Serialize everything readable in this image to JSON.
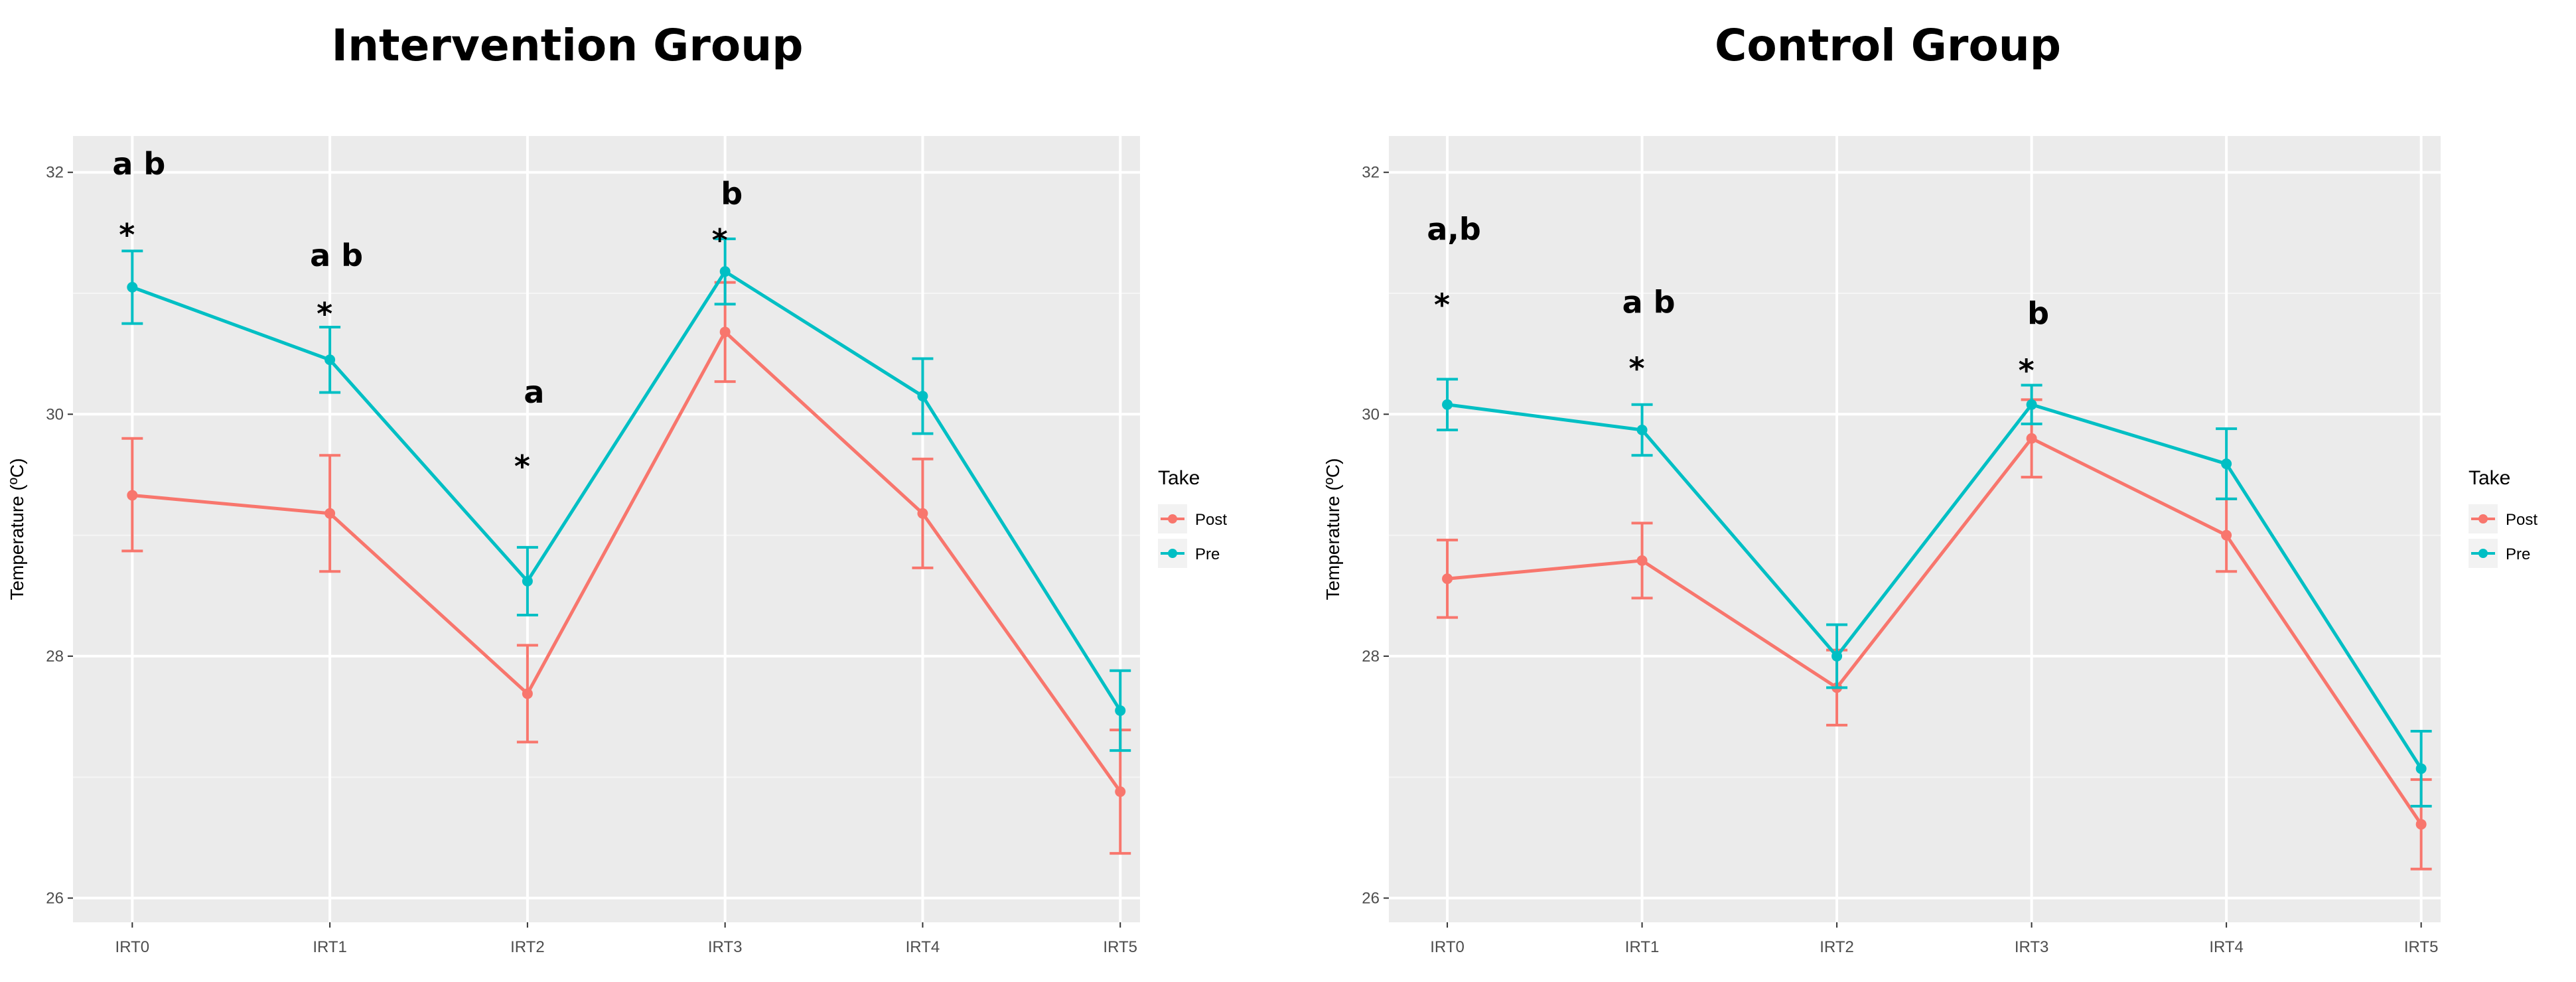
{
  "chart_data": [
    {
      "type": "line",
      "title": "Intervention Group",
      "xlabel": "",
      "ylabel": "Temperature (ºC)",
      "categories": [
        "IRT0",
        "IRT1",
        "IRT2",
        "IRT3",
        "IRT4",
        "IRT5"
      ],
      "ylim": [
        25.8,
        32.3
      ],
      "yticks": [
        26,
        28,
        30,
        32
      ],
      "grid": true,
      "legend": {
        "title": "Take",
        "position": "right"
      },
      "series": [
        {
          "name": "Post",
          "color": "#F8766D",
          "values": [
            29.33,
            29.18,
            27.69,
            30.68,
            29.18,
            26.88
          ],
          "lower": [
            28.87,
            28.7,
            27.29,
            30.27,
            28.73,
            26.37
          ],
          "upper": [
            29.8,
            29.66,
            28.09,
            31.09,
            29.63,
            27.39
          ]
        },
        {
          "name": "Pre",
          "color": "#00BFC4",
          "values": [
            31.05,
            30.45,
            28.62,
            31.18,
            30.15,
            27.55
          ],
          "lower": [
            30.75,
            30.18,
            28.34,
            30.91,
            29.84,
            27.22
          ],
          "upper": [
            31.35,
            30.72,
            28.9,
            31.45,
            30.46,
            27.88
          ]
        }
      ],
      "annotations": [
        {
          "category": "IRT0",
          "label": "a b",
          "marker": "*"
        },
        {
          "category": "IRT1",
          "label": "a b",
          "marker": "*"
        },
        {
          "category": "IRT2",
          "label": "a",
          "marker": "*"
        },
        {
          "category": "IRT3",
          "label": "b",
          "marker": "*"
        }
      ]
    },
    {
      "type": "line",
      "title": "Control Group",
      "xlabel": "",
      "ylabel": "Temperature (ºC)",
      "categories": [
        "IRT0",
        "IRT1",
        "IRT2",
        "IRT3",
        "IRT4",
        "IRT5"
      ],
      "ylim": [
        25.8,
        32.3
      ],
      "yticks": [
        26,
        28,
        30,
        32
      ],
      "grid": true,
      "legend": {
        "title": "Take",
        "position": "right"
      },
      "series": [
        {
          "name": "Post",
          "color": "#F8766D",
          "values": [
            28.64,
            28.79,
            27.74,
            29.8,
            29.0,
            26.61
          ],
          "lower": [
            28.32,
            28.48,
            27.43,
            29.48,
            28.7,
            26.24
          ],
          "upper": [
            28.96,
            29.1,
            28.05,
            30.12,
            29.3,
            26.98
          ]
        },
        {
          "name": "Pre",
          "color": "#00BFC4",
          "values": [
            30.08,
            29.87,
            28.0,
            30.08,
            29.59,
            27.07
          ],
          "lower": [
            29.87,
            29.66,
            27.74,
            29.92,
            29.3,
            26.76
          ],
          "upper": [
            30.29,
            30.08,
            28.26,
            30.24,
            29.88,
            27.38
          ]
        }
      ],
      "annotations": [
        {
          "category": "IRT0",
          "label": "a,b",
          "marker": "*"
        },
        {
          "category": "IRT1",
          "label": "a b",
          "marker": "*"
        },
        {
          "category": "IRT3",
          "label": "b",
          "marker": "*"
        }
      ]
    }
  ]
}
